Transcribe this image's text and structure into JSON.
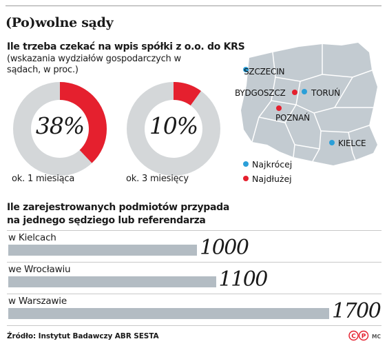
{
  "title": "(Po)wolne sądy",
  "section1": {
    "heading": "Ile trzeba czekać na wpis spółki z o.o. do KRS",
    "note": "(wskazania wydziałów gospodarczych w sądach, w proc.)"
  },
  "section2": {
    "heading_line1": "Ile zarejestrowanych podmiotów przypada",
    "heading_line2": "na jednego sędziego lub referendarza"
  },
  "map": {
    "cities": [
      {
        "name": "SZCZECIN",
        "kind": "fastest"
      },
      {
        "name": "BYDGOSZCZ",
        "kind": "slowest"
      },
      {
        "name": "TORUŃ",
        "kind": "fastest"
      },
      {
        "name": "POZNAŃ",
        "kind": "slowest"
      },
      {
        "name": "KIELCE",
        "kind": "fastest"
      }
    ],
    "legend": {
      "fastest": "Najkrócej",
      "slowest": "Najdłużej"
    },
    "colors": {
      "fastest": "#2b9fd8",
      "slowest": "#e5202e",
      "land": "#c3cbd1",
      "border": "#ffffff"
    }
  },
  "source": "Źródło: Instytut Badawczy ABR SESTA",
  "logo_text": "©P",
  "author": "MC",
  "chart_data": [
    {
      "type": "pie",
      "style": "donut",
      "title": "Ile trzeba czekać na wpis spółki z o.o. do KRS",
      "slices": [
        {
          "label": "ok. 1 miesiąca",
          "value": 38,
          "display": "38%",
          "color": "#e5202e",
          "rest_color": "#d4d7d9"
        },
        {
          "label": "ok. 3 miesięcy",
          "value": 10,
          "display": "10%",
          "color": "#e5202e",
          "rest_color": "#d4d7d9"
        }
      ]
    },
    {
      "type": "bar",
      "orientation": "horizontal",
      "title": "Ile zarejestrowanych podmiotów przypada na jednego sędziego lub referendarza",
      "categories": [
        "w Kielcach",
        "we Wrocławiu",
        "w Warszawie"
      ],
      "values": [
        1000,
        1100,
        1700
      ],
      "bar_color": "#b3bcc3"
    }
  ]
}
